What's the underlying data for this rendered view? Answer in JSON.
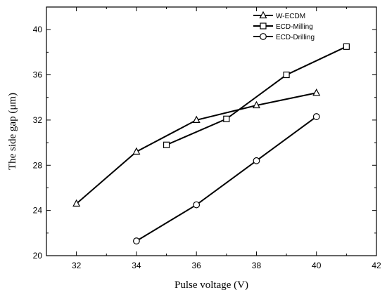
{
  "chart_data": {
    "type": "line",
    "title": "",
    "xlabel": "Pulse voltage (V)",
    "ylabel": "The side gap (μm)",
    "xlim": [
      31,
      42
    ],
    "ylim": [
      20,
      42
    ],
    "xticks": [
      32,
      34,
      36,
      38,
      40,
      42
    ],
    "yticks": [
      20,
      24,
      28,
      32,
      36,
      40
    ],
    "grid": false,
    "legend_position": "top-right",
    "series": [
      {
        "name": "W-ECDM",
        "marker": "triangle",
        "x": [
          32,
          34,
          36,
          38,
          40
        ],
        "y": [
          24.6,
          29.2,
          32.0,
          33.3,
          34.4
        ]
      },
      {
        "name": "ECD-Milling",
        "marker": "square",
        "x": [
          35,
          37,
          39,
          41
        ],
        "y": [
          29.8,
          32.1,
          36.0,
          38.5
        ]
      },
      {
        "name": "ECD-Drilling",
        "marker": "circle",
        "x": [
          34,
          36,
          38,
          40
        ],
        "y": [
          21.3,
          24.5,
          28.4,
          32.3
        ]
      }
    ]
  }
}
